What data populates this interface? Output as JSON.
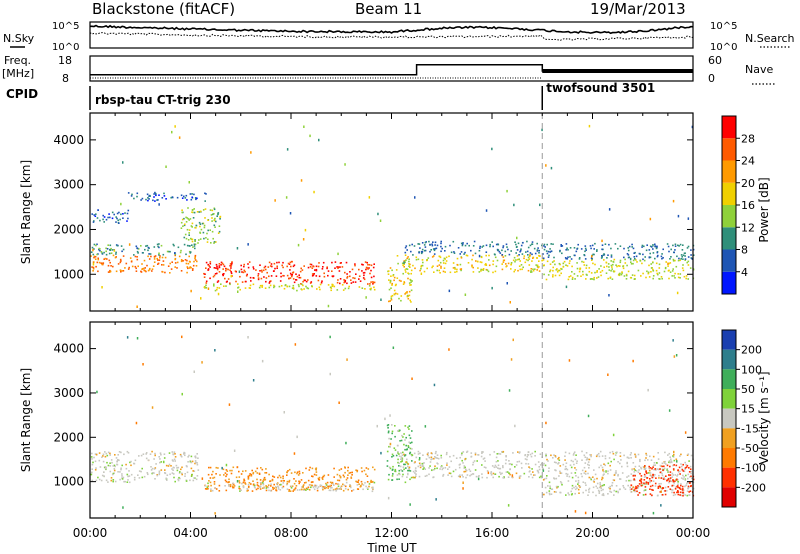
{
  "header": {
    "station": "Blackstone (fitACF)",
    "beam": "Beam 11",
    "date": "19/Mar/2013"
  },
  "panels": {
    "nsky": {
      "label": "N.Sky",
      "right_label": "N.Search",
      "left_ticks": [
        "10^5",
        "10^0"
      ],
      "right_ticks": [
        "10^5",
        "10^0"
      ]
    },
    "freq": {
      "label_line1": "Freq.",
      "label_line2": "[MHz]",
      "right_label": "Nave",
      "left_ticks": [
        "18",
        "8"
      ],
      "right_ticks": [
        "60",
        "0"
      ]
    },
    "cpid": {
      "label": "CPID",
      "segments": [
        {
          "name": "rbsp-tau CT-trig 230",
          "start_h": 0
        },
        {
          "name": "twofsound 3501",
          "start_h": 18
        }
      ]
    }
  },
  "power_colorbar": {
    "label": "Power [dB]",
    "ticks": [
      "4",
      "8",
      "12",
      "16",
      "20",
      "24",
      "28"
    ],
    "colors": [
      "#0016ff",
      "#1e55b4",
      "#2f8f7a",
      "#8fd13a",
      "#f0d000",
      "#ff9a00",
      "#ff5a00",
      "#ff0000"
    ]
  },
  "velocity_colorbar": {
    "label": "Velocity [m s⁻¹]",
    "ticks": [
      "200",
      "100",
      "50",
      "15",
      "-15",
      "-50",
      "-100",
      "-200"
    ],
    "colors": [
      "#1a3fb0",
      "#2e7e8c",
      "#3fae5a",
      "#7fd23a",
      "#c8c8c0",
      "#f0a020",
      "#ff7a00",
      "#ff3000",
      "#e00000"
    ]
  },
  "axes": {
    "ylabel": "Slant Range [km]",
    "y_ticks": [
      "1000",
      "2000",
      "3000",
      "4000"
    ],
    "x_ticks": [
      "00:00",
      "04:00",
      "08:00",
      "12:00",
      "16:00",
      "20:00",
      "00:00"
    ],
    "xlabel": "Time UT"
  },
  "chart_data": {
    "type": "heatmap",
    "x_range_hours": [
      0,
      24
    ],
    "y_range_km": [
      180,
      4600
    ],
    "power_scatter_regions": [
      {
        "t0": 0.0,
        "t1": 4.3,
        "r0": 1050,
        "r1": 1450,
        "value_db": 24
      },
      {
        "t0": 0.0,
        "t1": 4.3,
        "r0": 1450,
        "r1": 1700,
        "value_db": 10
      },
      {
        "t0": 0.0,
        "t1": 1.5,
        "r0": 2150,
        "r1": 2450,
        "value_db": 6
      },
      {
        "t0": 1.5,
        "t1": 4.6,
        "r0": 2650,
        "r1": 2850,
        "value_db": 6
      },
      {
        "t0": 3.6,
        "t1": 5.2,
        "r0": 1700,
        "r1": 2500,
        "value_db": 14
      },
      {
        "t0": 4.5,
        "t1": 11.3,
        "r0": 800,
        "r1": 1300,
        "value_db": 28
      },
      {
        "t0": 4.5,
        "t1": 11.3,
        "r0": 650,
        "r1": 800,
        "value_db": 16
      },
      {
        "t0": 11.8,
        "t1": 12.8,
        "r0": 400,
        "r1": 1200,
        "value_db": 18
      },
      {
        "t0": 12.2,
        "t1": 18.0,
        "r0": 1050,
        "r1": 1450,
        "value_db": 18
      },
      {
        "t0": 12.5,
        "t1": 18.0,
        "r0": 1450,
        "r1": 1750,
        "value_db": 8
      },
      {
        "t0": 18.0,
        "t1": 24.0,
        "r0": 900,
        "r1": 1350,
        "value_db": 16
      },
      {
        "t0": 18.0,
        "t1": 24.0,
        "r0": 1350,
        "r1": 1700,
        "value_db": 8
      }
    ],
    "velocity_scatter_regions": [
      {
        "t0": 0.0,
        "t1": 4.3,
        "r0": 1000,
        "r1": 1700,
        "value_ms": 0
      },
      {
        "t0": 4.5,
        "t1": 11.3,
        "r0": 800,
        "r1": 1350,
        "value_ms": -50
      },
      {
        "t0": 4.5,
        "t1": 11.3,
        "r0": 800,
        "r1": 1000,
        "value_ms": 0
      },
      {
        "t0": 11.8,
        "t1": 12.8,
        "r0": 1000,
        "r1": 2300,
        "value_ms": 30
      },
      {
        "t0": 12.2,
        "t1": 18.0,
        "r0": 1100,
        "r1": 1700,
        "value_ms": 0
      },
      {
        "t0": 18.0,
        "t1": 24.0,
        "r0": 700,
        "r1": 1700,
        "value_ms": 0
      },
      {
        "t0": 21.5,
        "t1": 24.0,
        "r0": 700,
        "r1": 1400,
        "value_ms": -150
      }
    ],
    "freq_segments_mhz": [
      {
        "t0": 0.0,
        "t1": 13.0,
        "value": 10.5
      },
      {
        "t0": 13.0,
        "t1": 18.0,
        "value": 14.5
      },
      {
        "t0": 18.0,
        "t1": 24.0,
        "value": 12.0
      }
    ]
  }
}
